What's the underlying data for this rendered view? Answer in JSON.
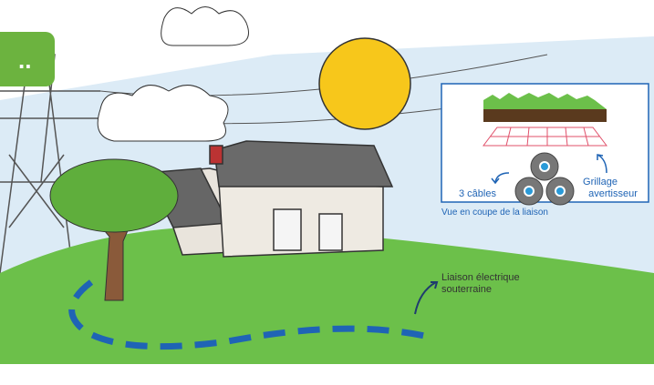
{
  "badge": "..",
  "inset": {
    "cables_label": "3 câbles",
    "grillage_label": [
      "Grillage",
      "avertisseur"
    ],
    "caption": "Vue en coupe de la liaison"
  },
  "callout": [
    "Liaison électrique",
    "souterraine"
  ]
}
